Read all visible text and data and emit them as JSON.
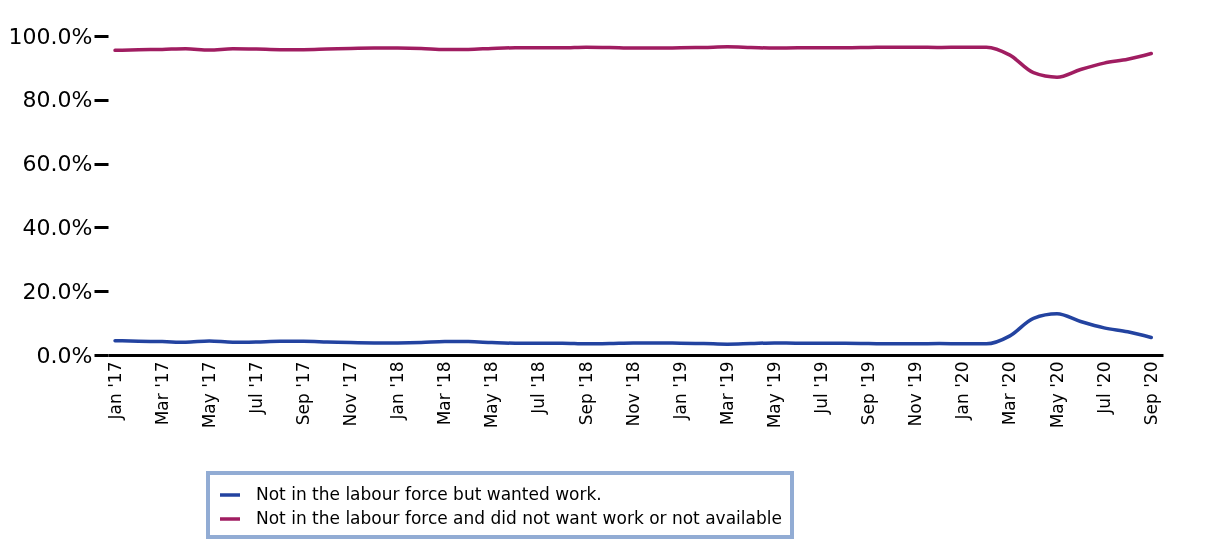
{
  "chart_data": {
    "type": "line",
    "categories": [
      "Jan '17",
      null,
      "Mar '17",
      null,
      "May '17",
      null,
      "Jul '17",
      null,
      "Sep '17",
      null,
      "Nov '17",
      null,
      "Jan '18",
      null,
      "Mar '18",
      null,
      "May '18",
      null,
      "Jul '18",
      null,
      "Sep '18",
      null,
      "Nov '18",
      null,
      "Jan '19",
      null,
      "Mar '19",
      null,
      "May '19",
      null,
      "Jul '19",
      null,
      "Sep '19",
      null,
      "Nov '19",
      null,
      "Jan '20",
      null,
      "Mar '20",
      null,
      "May '20",
      null,
      "Jul '20",
      null,
      "Sep '20"
    ],
    "series": [
      {
        "name": "Not in the labour force but wanted work.",
        "color": "#2343a0",
        "values": [
          4.5,
          4.3,
          4.2,
          4.0,
          4.4,
          4.0,
          4.1,
          4.3,
          4.3,
          4.1,
          3.9,
          3.8,
          3.8,
          3.9,
          4.2,
          4.2,
          3.9,
          3.7,
          3.7,
          3.7,
          3.5,
          3.6,
          3.8,
          3.8,
          3.7,
          3.6,
          3.4,
          3.6,
          3.8,
          3.7,
          3.7,
          3.7,
          3.6,
          3.5,
          3.5,
          3.6,
          3.5,
          3.5,
          6.0,
          11.5,
          12.9,
          10.5,
          8.5,
          7.3,
          5.5
        ]
      },
      {
        "name": "Not in the labour force and did not want work or not available",
        "color": "#a01d61",
        "values": [
          95.5,
          95.7,
          95.8,
          96.0,
          95.6,
          96.0,
          95.9,
          95.7,
          95.7,
          95.9,
          96.1,
          96.2,
          96.2,
          96.1,
          95.8,
          95.8,
          96.1,
          96.3,
          96.3,
          96.3,
          96.5,
          96.4,
          96.2,
          96.2,
          96.3,
          96.4,
          96.6,
          96.4,
          96.2,
          96.3,
          96.3,
          96.3,
          96.4,
          96.5,
          96.5,
          96.4,
          96.5,
          96.5,
          94.0,
          88.5,
          87.1,
          89.5,
          91.5,
          92.7,
          94.5
        ]
      }
    ],
    "ylim": [
      0,
      100
    ],
    "yticks": [
      {
        "value": 0,
        "label": "0.0%"
      },
      {
        "value": 20,
        "label": "20.0%"
      },
      {
        "value": 40,
        "label": "40.0%"
      },
      {
        "value": 60,
        "label": "60.0%"
      },
      {
        "value": 80,
        "label": "80.0%"
      },
      {
        "value": 100,
        "label": "100.0%"
      }
    ],
    "grid": false,
    "legend": "bottom",
    "marker": "none",
    "line_style": "solid"
  }
}
